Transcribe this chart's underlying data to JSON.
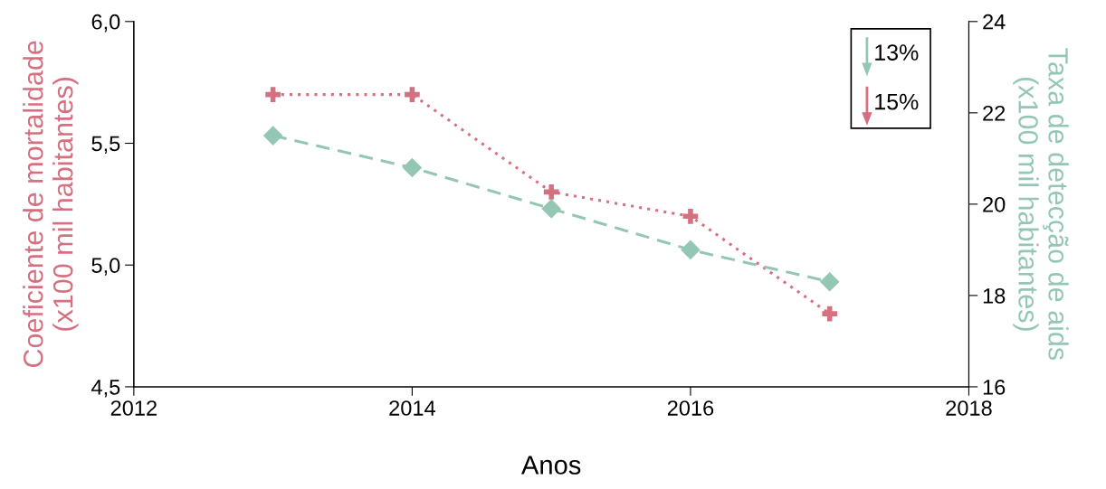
{
  "chart_data": {
    "type": "line",
    "xlabel": "Anos",
    "ylabel": "Coeficiente de mortalidade\n(x100 mil habitantes)",
    "y2label": "Taxa de detecção de aids\n(x100 mil habitantes)",
    "x": [
      2013,
      2014,
      2015,
      2016,
      2017
    ],
    "series": [
      {
        "color": "#93c7b3",
        "axis": "y2",
        "marker": "diamond",
        "line_style": "dashed",
        "values": [
          21.5,
          20.8,
          19.9,
          19.0,
          18.3
        ]
      },
      {
        "color": "#d4707f",
        "marker": "cross",
        "line_style": "dotted",
        "values": [
          5.7,
          5.7,
          5.3,
          5.2,
          4.8
        ]
      }
    ],
    "xlim": [
      2012,
      2018
    ],
    "xticks": [
      2012,
      2014,
      2016,
      2018
    ],
    "ylim": [
      4.5,
      6.0
    ],
    "yticks": [
      {
        "value": 4.5,
        "label": "4,5"
      },
      {
        "value": 5.0,
        "label": "5,0"
      },
      {
        "value": 5.5,
        "label": "5,5"
      },
      {
        "value": 6.0,
        "label": "6,0"
      }
    ],
    "y2lim": [
      16,
      24
    ],
    "y2ticks": [
      16,
      18,
      20,
      22,
      24
    ],
    "grid": false,
    "annotations": [
      "13%",
      "15%"
    ]
  }
}
